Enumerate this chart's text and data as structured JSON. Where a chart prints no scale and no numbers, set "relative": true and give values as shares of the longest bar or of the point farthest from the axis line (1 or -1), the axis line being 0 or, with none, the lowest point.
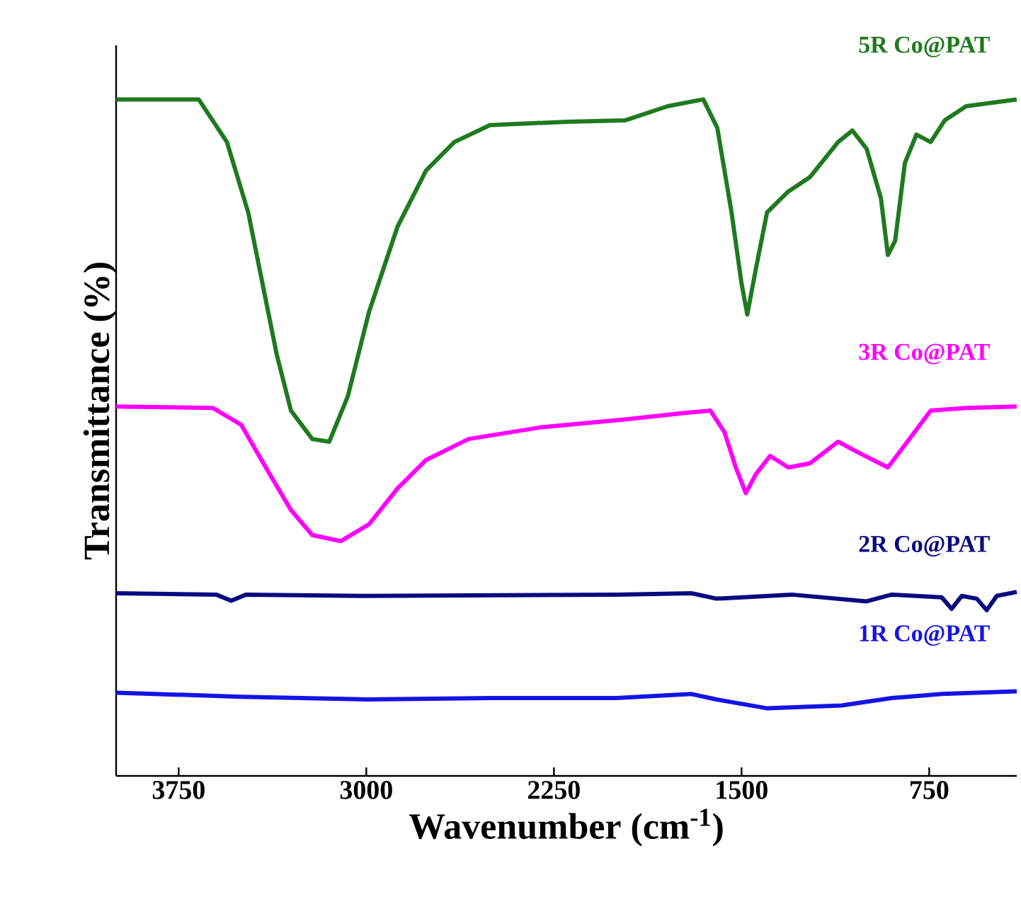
{
  "chart_data": {
    "type": "line",
    "xlabel": "Wavenumber (cm$^{-1}$)",
    "ylabel": "Transmittance (%)",
    "relative": true,
    "xlim": [
      4000,
      400
    ],
    "xticks": [
      3750,
      3000,
      2250,
      1500,
      750
    ],
    "grid": false,
    "marker": "none",
    "line_style": "solid",
    "series": [
      {
        "name": "5R Co@PAT",
        "color": "#1f7a1f",
        "x": [
          4000,
          3670,
          3557,
          3472,
          3415,
          3358,
          3301,
          3216,
          3148,
          3074,
          2989,
          2875,
          2761,
          2648,
          2506,
          2193,
          1966,
          1795,
          1653,
          1597,
          1540,
          1500,
          1477,
          1443,
          1398,
          1313,
          1227,
          1114,
          1057,
          1000,
          943,
          915,
          886,
          847,
          801,
          744,
          688,
          602,
          400
        ],
        "values": [
          1.0,
          1.0,
          0.937,
          0.833,
          0.728,
          0.623,
          0.54,
          0.498,
          0.494,
          0.561,
          0.686,
          0.812,
          0.895,
          0.937,
          0.962,
          0.967,
          0.969,
          0.99,
          1.0,
          0.958,
          0.833,
          0.728,
          0.682,
          0.749,
          0.833,
          0.864,
          0.885,
          0.937,
          0.954,
          0.927,
          0.854,
          0.77,
          0.791,
          0.906,
          0.948,
          0.937,
          0.969,
          0.99,
          1.0
        ]
      },
      {
        "name": "3R Co@PAT",
        "color": "#ff00ff",
        "x": [
          4000,
          3614,
          3500,
          3386,
          3301,
          3216,
          3102,
          2989,
          2875,
          2761,
          2591,
          2307,
          1966,
          1739,
          1625,
          1568,
          1523,
          1483,
          1443,
          1386,
          1313,
          1227,
          1114,
          1028,
          915,
          829,
          744,
          602,
          400
        ],
        "values": [
          0.546,
          0.544,
          0.519,
          0.446,
          0.393,
          0.356,
          0.347,
          0.372,
          0.425,
          0.467,
          0.498,
          0.515,
          0.527,
          0.536,
          0.54,
          0.508,
          0.456,
          0.418,
          0.446,
          0.473,
          0.456,
          0.462,
          0.494,
          0.477,
          0.456,
          0.498,
          0.54,
          0.544,
          0.546
        ]
      },
      {
        "name": "2R Co@PAT",
        "color": "#0a0a80",
        "x": [
          4000,
          3600,
          3540,
          3480,
          3000,
          2000,
          1700,
          1600,
          1300,
          1000,
          900,
          700,
          660,
          620,
          560,
          520,
          480,
          400
        ],
        "values": [
          0.27,
          0.268,
          0.259,
          0.268,
          0.266,
          0.268,
          0.27,
          0.262,
          0.268,
          0.258,
          0.268,
          0.264,
          0.247,
          0.266,
          0.262,
          0.245,
          0.266,
          0.272
        ]
      },
      {
        "name": "1R Co@PAT",
        "color": "#1414e6",
        "x": [
          4000,
          3500,
          3000,
          2500,
          2000,
          1700,
          1600,
          1400,
          1100,
          900,
          700,
          400
        ],
        "values": [
          0.123,
          0.117,
          0.113,
          0.115,
          0.115,
          0.121,
          0.113,
          0.1,
          0.104,
          0.115,
          0.121,
          0.125
        ]
      }
    ]
  }
}
